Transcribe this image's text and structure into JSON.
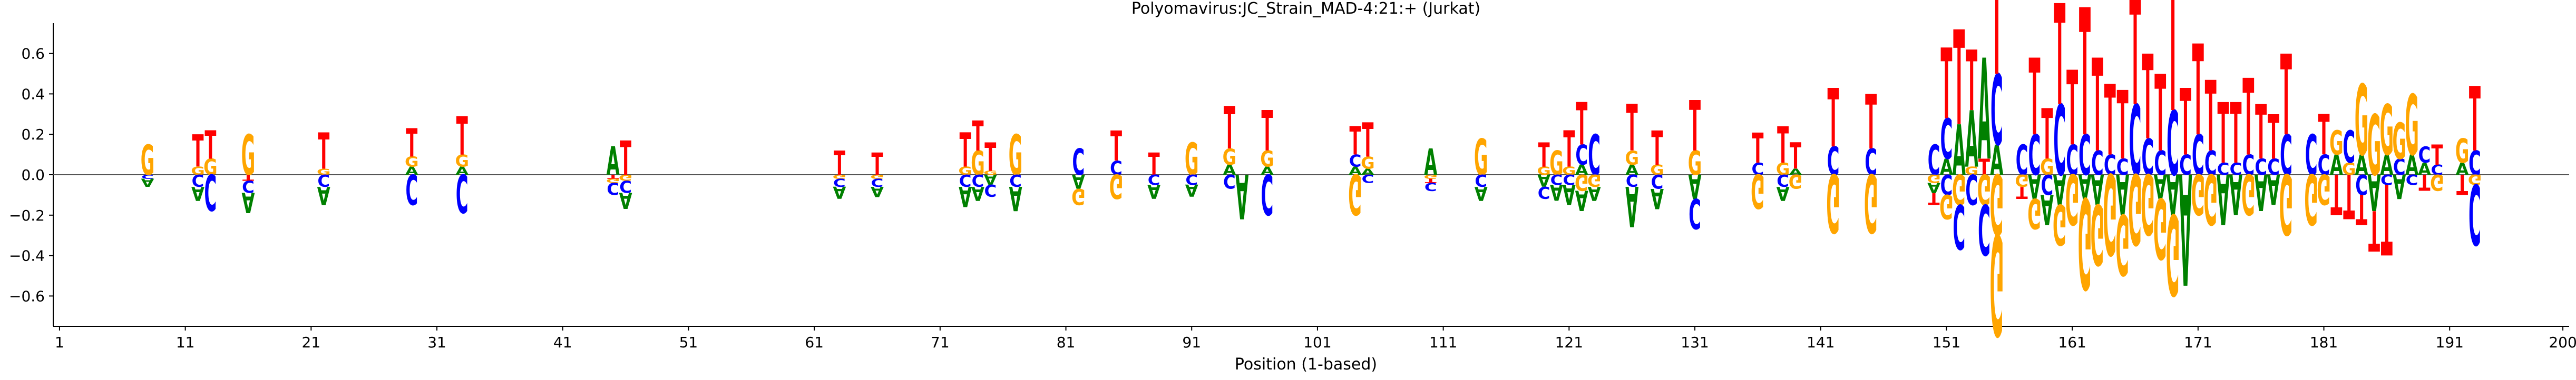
{
  "chart_data": {
    "type": "sequence-logo",
    "title": "Polyomavirus:JC_Strain_MAD-4:21:+  (Jurkat)",
    "xlabel": "Position (1-based)",
    "ylabel": "",
    "xlim": [
      1,
      200
    ],
    "ylim": [
      -0.75,
      0.75
    ],
    "x_ticks": [
      1,
      11,
      21,
      31,
      41,
      51,
      61,
      71,
      81,
      91,
      101,
      111,
      121,
      131,
      141,
      151,
      161,
      171,
      181,
      191,
      200
    ],
    "y_ticks": [
      -0.6,
      -0.4,
      -0.2,
      0.0,
      0.2,
      0.4,
      0.6
    ],
    "y_tick_labels": [
      "−0.6",
      "−0.4",
      "−0.2",
      "0.0",
      "0.2",
      "0.4",
      "0.6"
    ],
    "baseline": 0,
    "grid": false,
    "base_colors": {
      "A": "#008000",
      "C": "#0000ff",
      "G": "#ffa500",
      "T": "#ff0000"
    },
    "positions": [
      {
        "x": 8,
        "A": -0.04,
        "C": -0.02,
        "G": 0.15
      },
      {
        "x": 12,
        "T": 0.16,
        "G": 0.04,
        "C": -0.06,
        "A": -0.07
      },
      {
        "x": 13,
        "T": 0.14,
        "G": 0.08,
        "C": -0.18
      },
      {
        "x": 16,
        "G": 0.2,
        "T": -0.03,
        "C": -0.06,
        "A": -0.1
      },
      {
        "x": 22,
        "T": 0.18,
        "G": 0.03,
        "C": -0.06,
        "A": -0.09
      },
      {
        "x": 29,
        "T": 0.14,
        "G": 0.05,
        "A": 0.04,
        "C": -0.15
      },
      {
        "x": 33,
        "T": 0.19,
        "G": 0.06,
        "A": 0.04,
        "C": -0.19
      },
      {
        "x": 45,
        "A": 0.14,
        "T": -0.02,
        "G": -0.02,
        "C": -0.06
      },
      {
        "x": 46,
        "T": 0.17,
        "G": -0.03,
        "C": -0.06,
        "A": -0.08
      },
      {
        "x": 63,
        "T": 0.12,
        "G": -0.02,
        "C": -0.04,
        "A": -0.06
      },
      {
        "x": 66,
        "T": 0.11,
        "G": -0.02,
        "C": -0.04,
        "A": -0.05
      },
      {
        "x": 73,
        "T": 0.17,
        "G": 0.04,
        "C": -0.06,
        "A": -0.1
      },
      {
        "x": 74,
        "T": 0.15,
        "G": 0.12,
        "C": -0.06,
        "A": -0.07
      },
      {
        "x": 75,
        "T": 0.14,
        "G": 0.02,
        "C": -0.06,
        "A": -0.05
      },
      {
        "x": 77,
        "G": 0.2,
        "C": -0.06,
        "A": -0.12
      },
      {
        "x": 82,
        "C": 0.13,
        "G": -0.08,
        "A": -0.07
      },
      {
        "x": 85,
        "T": 0.15,
        "C": 0.07,
        "G": -0.12
      },
      {
        "x": 88,
        "T": 0.11,
        "C": -0.05,
        "A": -0.07
      },
      {
        "x": 91,
        "G": 0.16,
        "C": -0.05,
        "A": -0.06
      },
      {
        "x": 94,
        "T": 0.21,
        "G": 0.08,
        "A": 0.05,
        "C": -0.07,
        "A2": -0.0
      },
      {
        "x": 95,
        "A": -0.22
      },
      {
        "x": 97,
        "T": 0.2,
        "G": 0.08,
        "A": 0.04,
        "C": -0.2
      },
      {
        "x": 104,
        "T": 0.14,
        "C": 0.06,
        "A": 0.04,
        "G": -0.2
      },
      {
        "x": 105,
        "T": 0.17,
        "G": 0.06,
        "A": 0.03,
        "C": -0.04
      },
      {
        "x": 110,
        "A": 0.13,
        "G": -0.02,
        "T": -0.02,
        "C": -0.04
      },
      {
        "x": 114,
        "G": 0.18,
        "C": -0.06,
        "A": -0.07
      },
      {
        "x": 119,
        "T": 0.12,
        "G": 0.04,
        "A": -0.06,
        "C": -0.06
      },
      {
        "x": 120,
        "G": 0.12,
        "C": -0.05,
        "A": -0.08
      },
      {
        "x": 121,
        "T": 0.18,
        "G": 0.04,
        "C": -0.05,
        "A": -0.1
      },
      {
        "x": 122,
        "T": 0.21,
        "C": 0.1,
        "A": 0.05,
        "G": -0.08,
        "A2": -0.1
      },
      {
        "x": 123,
        "C": 0.2,
        "G": -0.06,
        "A": -0.07
      },
      {
        "x": 126,
        "T": 0.23,
        "G": 0.07,
        "A": 0.05,
        "C": -0.06,
        "A2": -0.2
      },
      {
        "x": 128,
        "T": 0.17,
        "G": 0.05,
        "C": -0.07,
        "A": -0.1
      },
      {
        "x": 131,
        "T": 0.25,
        "G": 0.12,
        "A": -0.12,
        "C": -0.15
      },
      {
        "x": 136,
        "T": 0.15,
        "C": 0.06,
        "G": -0.17
      },
      {
        "x": 138,
        "T": 0.18,
        "G": 0.06,
        "C": -0.06,
        "A": -0.07
      },
      {
        "x": 139,
        "T": 0.13,
        "A": 0.03,
        "G": -0.07
      },
      {
        "x": 142,
        "T": 0.29,
        "C": 0.14,
        "G": -0.29
      },
      {
        "x": 145,
        "T": 0.27,
        "C": 0.13,
        "G": -0.29
      },
      {
        "x": 150,
        "C": 0.15,
        "G": -0.04,
        "T": -0.06,
        "A": -0.05
      },
      {
        "x": 151,
        "T": 0.35,
        "C": 0.2,
        "A": 0.08,
        "G": -0.12,
        "C2": -0.1
      },
      {
        "x": 152,
        "T": 0.47,
        "A": 0.25,
        "G": -0.15,
        "C": -0.22
      },
      {
        "x": 153,
        "T": 0.3,
        "A": 0.28,
        "G": 0.04,
        "C": -0.15
      },
      {
        "x": 154,
        "A": 0.5,
        "T": 0.08,
        "G": -0.15,
        "C": -0.25
      },
      {
        "x": 155,
        "T": 0.72,
        "C": 0.35,
        "A": 0.15,
        "G": -0.3,
        "G2": -0.5
      },
      {
        "x": 157,
        "C": 0.15,
        "G": -0.06,
        "T": -0.06
      },
      {
        "x": 158,
        "T": 0.38,
        "C": 0.2,
        "G": -0.15,
        "A": -0.12
      },
      {
        "x": 159,
        "T": 0.25,
        "G": 0.08,
        "C": -0.1,
        "A": -0.15
      },
      {
        "x": 160,
        "T": 0.5,
        "C": 0.35,
        "A": -0.15,
        "G": -0.2
      },
      {
        "x": 161,
        "T": 0.37,
        "C": 0.15,
        "G": -0.25
      },
      {
        "x": 162,
        "T": 0.63,
        "C": 0.2,
        "A": -0.12,
        "G": -0.45
      },
      {
        "x": 163,
        "T": 0.46,
        "C": 0.12,
        "A": -0.15,
        "G": -0.3
      },
      {
        "x": 164,
        "T": 0.35,
        "C": 0.1,
        "G": -0.4
      },
      {
        "x": 165,
        "T": 0.34,
        "C": 0.08,
        "A": -0.2,
        "G": -0.3
      },
      {
        "x": 166,
        "T": 0.55,
        "C": 0.35,
        "G": -0.35
      },
      {
        "x": 167,
        "T": 0.42,
        "C": 0.18,
        "G": -0.3
      },
      {
        "x": 168,
        "T": 0.38,
        "C": 0.12,
        "A": -0.12,
        "G": -0.3
      },
      {
        "x": 169,
        "T": 0.72,
        "C": 0.32,
        "A": -0.2,
        "G": -0.4
      },
      {
        "x": 170,
        "T": 0.33,
        "C": 0.1,
        "A": -0.55
      },
      {
        "x": 171,
        "T": 0.45,
        "C": 0.2,
        "G": -0.2
      },
      {
        "x": 172,
        "T": 0.35,
        "C": 0.12,
        "G": -0.25
      },
      {
        "x": 173,
        "T": 0.3,
        "C": 0.06,
        "A": -0.25
      },
      {
        "x": 174,
        "T": 0.3,
        "C": 0.06,
        "A": -0.2
      },
      {
        "x": 175,
        "T": 0.38,
        "C": 0.1,
        "G": -0.2
      },
      {
        "x": 176,
        "T": 0.27,
        "C": 0.08,
        "A": -0.18
      },
      {
        "x": 177,
        "T": 0.22,
        "C": 0.08,
        "A": -0.15
      },
      {
        "x": 178,
        "T": 0.4,
        "C": 0.2,
        "G": -0.3
      },
      {
        "x": 180,
        "C": 0.2,
        "G": -0.25
      },
      {
        "x": 181,
        "T": 0.2,
        "C": 0.1,
        "G": -0.15
      },
      {
        "x": 182,
        "G": 0.12,
        "A": 0.1,
        "T": -0.2
      },
      {
        "x": 183,
        "C": 0.16,
        "G": 0.06,
        "T": -0.22
      },
      {
        "x": 184,
        "G": 0.35,
        "A": 0.1,
        "C": -0.1,
        "T": -0.15
      },
      {
        "x": 185,
        "G": 0.3,
        "T": -0.2,
        "A": -0.18
      },
      {
        "x": 186,
        "G": 0.25,
        "A": 0.1,
        "C": -0.05,
        "T": -0.35
      },
      {
        "x": 187,
        "G": 0.18,
        "C": 0.08,
        "A": -0.12
      },
      {
        "x": 188,
        "G": 0.3,
        "A": 0.1,
        "C": -0.05
      },
      {
        "x": 189,
        "C": 0.08,
        "A": 0.06,
        "T": -0.08
      },
      {
        "x": 190,
        "T": 0.1,
        "C": 0.05,
        "G": -0.08
      },
      {
        "x": 192,
        "G": 0.12,
        "A": 0.06,
        "T": -0.1
      },
      {
        "x": 193,
        "T": 0.32,
        "C": 0.12,
        "G": -0.05,
        "C2": -0.3
      }
    ]
  }
}
